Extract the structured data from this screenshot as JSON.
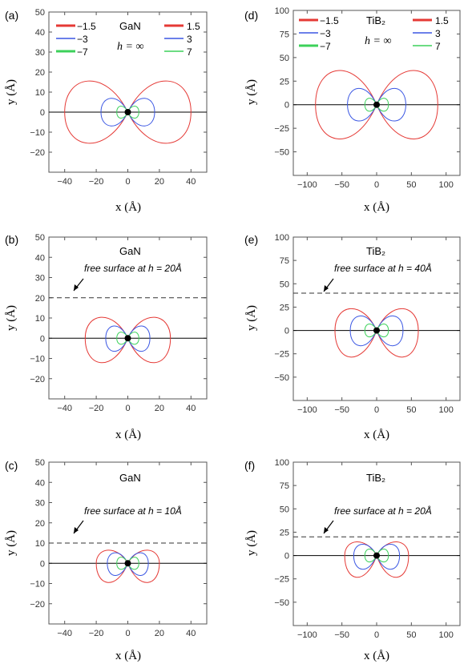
{
  "figure": {
    "panels": [
      {
        "label": "(a)",
        "material": "GaN",
        "h_text": "h = ∞",
        "surface_note": "",
        "legend": {
          "left": [
            "−1.5",
            "−3",
            "−7"
          ],
          "right": [
            "1.5",
            "3",
            "7"
          ]
        },
        "xlabel": "x  (Å)",
        "ylabel": "y  (Å)"
      },
      {
        "label": "(b)",
        "material": "GaN",
        "surface_note": "free surface at  h = 20Å",
        "xlabel": "x  (Å)",
        "ylabel": "y  (Å)"
      },
      {
        "label": "(c)",
        "material": "GaN",
        "surface_note": "free surface at  h = 10Å",
        "xlabel": "x  (Å)",
        "ylabel": "y  (Å)"
      },
      {
        "label": "(d)",
        "material": "TiB₂",
        "h_text": "h = ∞",
        "legend": {
          "left": [
            "−1.5",
            "−3",
            "−7"
          ],
          "right": [
            "1.5",
            "3",
            "7"
          ]
        },
        "xlabel": "x  (Å)",
        "ylabel": "y  (Å)"
      },
      {
        "label": "(e)",
        "material": "TiB₂",
        "surface_note": "free surface at  h = 40Å",
        "xlabel": "x  (Å)",
        "ylabel": "y  (Å)"
      },
      {
        "label": "(f)",
        "material": "TiB₂",
        "surface_note": "free surface at  h = 20Å",
        "xlabel": "x  (Å)",
        "ylabel": "y  (Å)"
      }
    ]
  },
  "chart_data": [
    {
      "type": "line",
      "panel": "(a)",
      "title": "",
      "xlabel": "x  (Å)",
      "ylabel": "y  (Å)",
      "xlim": [
        -50,
        50
      ],
      "ylim": [
        -30,
        50
      ],
      "xticks": [
        -40,
        -20,
        0,
        20,
        40
      ],
      "yticks": [
        -20,
        -10,
        0,
        10,
        20,
        30,
        40,
        50
      ],
      "surface_h": null,
      "series": [
        {
          "name": "−1.5",
          "color": "#e53935",
          "x_extent": 40,
          "y_up": 18,
          "y_down": 18
        },
        {
          "name": "1.5",
          "color": "#e53935",
          "x_extent": 40,
          "y_up": 18,
          "y_down": 18
        },
        {
          "name": "−3",
          "color": "#3b57e3",
          "x_extent": 17,
          "y_up": 8,
          "y_down": 8
        },
        {
          "name": "3",
          "color": "#3b57e3",
          "x_extent": 17,
          "y_up": 8,
          "y_down": 8
        },
        {
          "name": "−7",
          "color": "#3cd15a",
          "x_extent": 7,
          "y_up": 3.5,
          "y_down": 3.5
        },
        {
          "name": "7",
          "color": "#3cd15a",
          "x_extent": 7,
          "y_up": 3.5,
          "y_down": 3.5
        }
      ]
    },
    {
      "type": "line",
      "panel": "(b)",
      "title": "",
      "xlabel": "x  (Å)",
      "ylabel": "y  (Å)",
      "xlim": [
        -50,
        50
      ],
      "ylim": [
        -30,
        50
      ],
      "xticks": [
        -40,
        -20,
        0,
        20,
        40
      ],
      "yticks": [
        -20,
        -10,
        0,
        10,
        20,
        30,
        40,
        50
      ],
      "surface_h": 20,
      "series": [
        {
          "name": "−1.5",
          "color": "#e53935",
          "x_extent": 27,
          "y_up": 12,
          "y_down": 14
        },
        {
          "name": "−3",
          "color": "#3b57e3",
          "x_extent": 14,
          "y_up": 7,
          "y_down": 7.5
        },
        {
          "name": "−7",
          "color": "#3cd15a",
          "x_extent": 7,
          "y_up": 3.5,
          "y_down": 3.5
        }
      ]
    },
    {
      "type": "line",
      "panel": "(c)",
      "title": "",
      "xlabel": "x  (Å)",
      "ylabel": "y  (Å)",
      "xlim": [
        -50,
        50
      ],
      "ylim": [
        -30,
        50
      ],
      "xticks": [
        -40,
        -20,
        0,
        20,
        40
      ],
      "yticks": [
        -20,
        -10,
        0,
        10,
        20,
        30,
        40,
        50
      ],
      "surface_h": 10,
      "series": [
        {
          "name": "−1.5",
          "color": "#e53935",
          "x_extent": 20,
          "y_up": 7.5,
          "y_down": 11
        },
        {
          "name": "−3",
          "color": "#3b57e3",
          "x_extent": 13,
          "y_up": 6,
          "y_down": 7
        },
        {
          "name": "−7",
          "color": "#3cd15a",
          "x_extent": 7,
          "y_up": 3.5,
          "y_down": 3.5
        }
      ]
    },
    {
      "type": "line",
      "panel": "(d)",
      "title": "",
      "xlabel": "x  (Å)",
      "ylabel": "y  (Å)",
      "xlim": [
        -120,
        120
      ],
      "ylim": [
        -75,
        100
      ],
      "xticks": [
        -100,
        -50,
        0,
        50,
        100
      ],
      "yticks": [
        -50,
        -25,
        0,
        25,
        50,
        75,
        100
      ],
      "surface_h": null,
      "series": [
        {
          "name": "−1.5",
          "color": "#e53935",
          "x_extent": 88,
          "y_up": 42,
          "y_down": 42
        },
        {
          "name": "1.5",
          "color": "#e53935",
          "x_extent": 88,
          "y_up": 42,
          "y_down": 42
        },
        {
          "name": "−3",
          "color": "#3b57e3",
          "x_extent": 42,
          "y_up": 20,
          "y_down": 20
        },
        {
          "name": "3",
          "color": "#3b57e3",
          "x_extent": 42,
          "y_up": 20,
          "y_down": 20
        },
        {
          "name": "−7",
          "color": "#3cd15a",
          "x_extent": 17,
          "y_up": 8,
          "y_down": 8
        },
        {
          "name": "7",
          "color": "#3cd15a",
          "x_extent": 17,
          "y_up": 8,
          "y_down": 8
        }
      ]
    },
    {
      "type": "line",
      "panel": "(e)",
      "title": "",
      "xlabel": "x  (Å)",
      "ylabel": "y  (Å)",
      "xlim": [
        -120,
        120
      ],
      "ylim": [
        -75,
        100
      ],
      "xticks": [
        -100,
        -50,
        0,
        50,
        100
      ],
      "yticks": [
        -50,
        -25,
        0,
        25,
        50,
        75,
        100
      ],
      "surface_h": 40,
      "series": [
        {
          "name": "−1.5",
          "color": "#e53935",
          "x_extent": 60,
          "y_up": 27,
          "y_down": 33
        },
        {
          "name": "−3",
          "color": "#3b57e3",
          "x_extent": 38,
          "y_up": 18,
          "y_down": 19
        },
        {
          "name": "−7",
          "color": "#3cd15a",
          "x_extent": 17,
          "y_up": 8,
          "y_down": 8
        }
      ]
    },
    {
      "type": "line",
      "panel": "(f)",
      "title": "",
      "xlabel": "x  (Å)",
      "ylabel": "y  (Å)",
      "xlim": [
        -120,
        120
      ],
      "ylim": [
        -75,
        100
      ],
      "xticks": [
        -100,
        -50,
        0,
        50,
        100
      ],
      "yticks": [
        -50,
        -25,
        0,
        25,
        50,
        75,
        100
      ],
      "surface_h": 20,
      "series": [
        {
          "name": "−1.5",
          "color": "#e53935",
          "x_extent": 46,
          "y_up": 17,
          "y_down": 27
        },
        {
          "name": "−3",
          "color": "#3b57e3",
          "x_extent": 33,
          "y_up": 14,
          "y_down": 17
        },
        {
          "name": "−7",
          "color": "#3cd15a",
          "x_extent": 17,
          "y_up": 8,
          "y_down": 8
        }
      ]
    }
  ]
}
